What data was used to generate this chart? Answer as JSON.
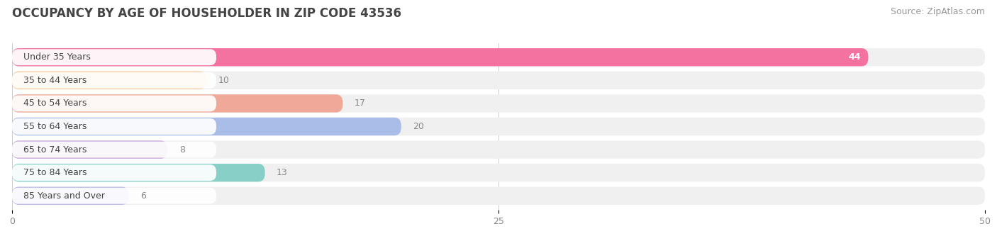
{
  "title": "OCCUPANCY BY AGE OF HOUSEHOLDER IN ZIP CODE 43536",
  "source": "Source: ZipAtlas.com",
  "categories": [
    "Under 35 Years",
    "35 to 44 Years",
    "45 to 54 Years",
    "55 to 64 Years",
    "65 to 74 Years",
    "75 to 84 Years",
    "85 Years and Over"
  ],
  "values": [
    44,
    10,
    17,
    20,
    8,
    13,
    6
  ],
  "bar_colors": [
    "#F472A0",
    "#F5C998",
    "#F0A898",
    "#AABDE8",
    "#C8A8D8",
    "#88CFC8",
    "#BBBBEE"
  ],
  "value_text_colors": [
    "white",
    "#888888",
    "#888888",
    "#888888",
    "#888888",
    "#888888",
    "#888888"
  ],
  "xlim": [
    0,
    50
  ],
  "xticks": [
    0,
    25,
    50
  ],
  "background_color": "#ffffff",
  "row_bg_color": "#f0f0f0",
  "label_bg_color": "#ffffff",
  "title_fontsize": 12,
  "source_fontsize": 9,
  "label_fontsize": 9,
  "value_fontsize": 9
}
